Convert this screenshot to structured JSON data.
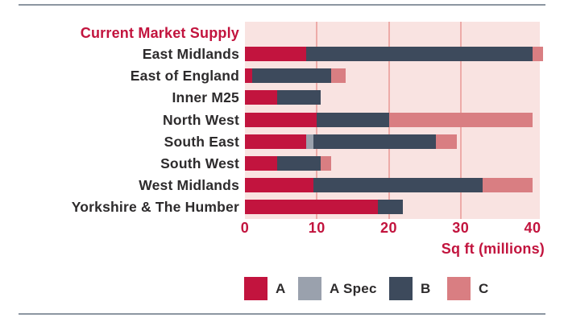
{
  "chart_data": {
    "type": "bar",
    "orientation": "horizontal",
    "stacked": true,
    "title": "Current Market Supply",
    "xlabel": "Sq ft (millions)",
    "categories": [
      "East Midlands",
      "East of England",
      "Inner M25",
      "North West",
      "South East",
      "South West",
      "West Midlands",
      "Yorkshire & The Humber"
    ],
    "series": [
      {
        "name": "A",
        "color": "#c2143e",
        "values": [
          8.5,
          1,
          4.5,
          10,
          8.5,
          4.5,
          9.5,
          18.5
        ]
      },
      {
        "name": "A Spec",
        "color": "#9aa1ad",
        "values": [
          0,
          0,
          0,
          0,
          1,
          0,
          0,
          0
        ]
      },
      {
        "name": "B",
        "color": "#3d4a5c",
        "values": [
          31.5,
          11,
          6,
          10,
          17,
          6,
          23.5,
          3.5
        ]
      },
      {
        "name": "C",
        "color": "#d97e82",
        "values": [
          1.5,
          2,
          0,
          20,
          3,
          1.5,
          7,
          0
        ]
      }
    ],
    "totals": [
      41.5,
      14,
      10.5,
      40,
      29.5,
      12,
      40,
      22
    ],
    "x_ticks": [
      0,
      10,
      20,
      30,
      40
    ],
    "gridlines": [
      10,
      20,
      30
    ],
    "xlim": [
      0,
      41
    ],
    "legend_position": "bottom",
    "legend_entries": [
      "A",
      "A Spec",
      "B",
      "C"
    ]
  },
  "style": {
    "plot_bg": "#f9e3e1",
    "gridline_color": "#edaba8",
    "accent_red": "#c2143e",
    "text_color": "#2d2b2c",
    "divider_color": "#8c96a1"
  }
}
